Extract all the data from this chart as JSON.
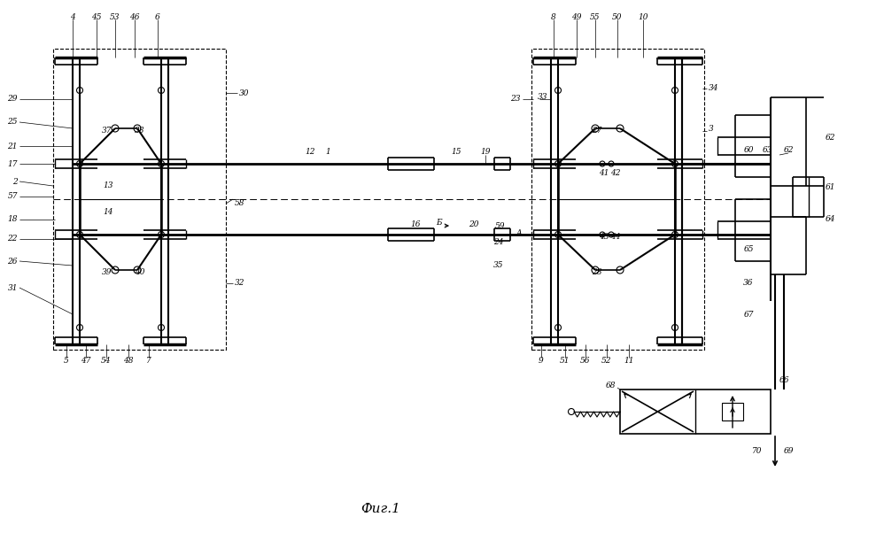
{
  "title": "Фиг.1",
  "bg_color": "#ffffff",
  "figsize": [
    9.98,
    6.1
  ],
  "dpi": 100
}
